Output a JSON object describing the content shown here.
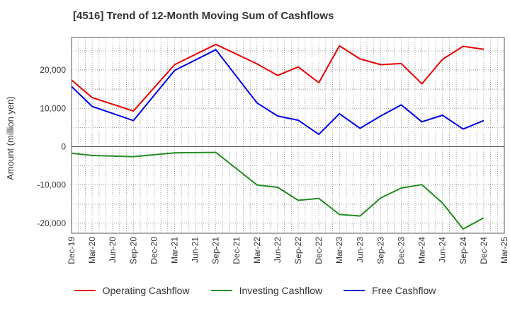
{
  "chart_data": {
    "type": "line",
    "title": "[4516]  Trend of 12-Month Moving Sum of Cashflows",
    "ylabel": "Amount (million yen)",
    "xlabel": "",
    "ylim": [
      -22600,
      28500
    ],
    "yticks": [
      -20000,
      -10000,
      0,
      10000,
      20000
    ],
    "ytick_labels": [
      "-20,000",
      "-10,000",
      "0",
      "10,000",
      "20,000"
    ],
    "x_ticks": [
      "Dec-19",
      "Mar-20",
      "Jun-20",
      "Sep-20",
      "Dec-20",
      "Mar-21",
      "Jun-21",
      "Sep-21",
      "Dec-21",
      "Mar-22",
      "Jun-22",
      "Sep-22",
      "Dec-22",
      "Mar-23",
      "Jun-23",
      "Sep-23",
      "Dec-23",
      "Mar-24",
      "Jun-24",
      "Sep-24",
      "Dec-24",
      "Mar-25"
    ],
    "grid": true,
    "legend_position": "bottom",
    "series": [
      {
        "name": "Operating Cashflow",
        "color": "#e60000",
        "points": [
          [
            "Dec-19",
            17400
          ],
          [
            "Mar-20",
            12800
          ],
          [
            "Sep-20",
            9300
          ],
          [
            "Mar-21",
            21400
          ],
          [
            "Sep-21",
            26700
          ],
          [
            "Mar-22",
            21600
          ],
          [
            "Jun-22",
            18600
          ],
          [
            "Sep-22",
            20800
          ],
          [
            "Dec-22",
            16700
          ],
          [
            "Mar-23",
            26300
          ],
          [
            "Jun-23",
            22900
          ],
          [
            "Sep-23",
            21400
          ],
          [
            "Dec-23",
            21700
          ],
          [
            "Mar-24",
            16400
          ],
          [
            "Jun-24",
            22800
          ],
          [
            "Sep-24",
            26200
          ],
          [
            "Dec-24",
            25400
          ]
        ]
      },
      {
        "name": "Investing Cashflow",
        "color": "#228b22",
        "points": [
          [
            "Dec-19",
            -1700
          ],
          [
            "Mar-20",
            -2300
          ],
          [
            "Sep-20",
            -2600
          ],
          [
            "Mar-21",
            -1600
          ],
          [
            "Sep-21",
            -1500
          ],
          [
            "Mar-22",
            -10000
          ],
          [
            "Jun-22",
            -10600
          ],
          [
            "Sep-22",
            -14000
          ],
          [
            "Dec-22",
            -13500
          ],
          [
            "Mar-23",
            -17700
          ],
          [
            "Jun-23",
            -18100
          ],
          [
            "Sep-23",
            -13400
          ],
          [
            "Dec-23",
            -10800
          ],
          [
            "Mar-24",
            -9900
          ],
          [
            "Jun-24",
            -14700
          ],
          [
            "Sep-24",
            -21500
          ],
          [
            "Dec-24",
            -18600
          ]
        ]
      },
      {
        "name": "Free Cashflow",
        "color": "#0000e6",
        "points": [
          [
            "Dec-19",
            15700
          ],
          [
            "Mar-20",
            10500
          ],
          [
            "Sep-20",
            6800
          ],
          [
            "Mar-21",
            19900
          ],
          [
            "Sep-21",
            25300
          ],
          [
            "Mar-22",
            11400
          ],
          [
            "Jun-22",
            8000
          ],
          [
            "Sep-22",
            6900
          ],
          [
            "Dec-22",
            3200
          ],
          [
            "Mar-23",
            8600
          ],
          [
            "Jun-23",
            4800
          ],
          [
            "Sep-23",
            8000
          ],
          [
            "Dec-23",
            10900
          ],
          [
            "Mar-24",
            6500
          ],
          [
            "Jun-24",
            8200
          ],
          [
            "Sep-24",
            4600
          ],
          [
            "Dec-24",
            6800
          ]
        ]
      }
    ]
  }
}
